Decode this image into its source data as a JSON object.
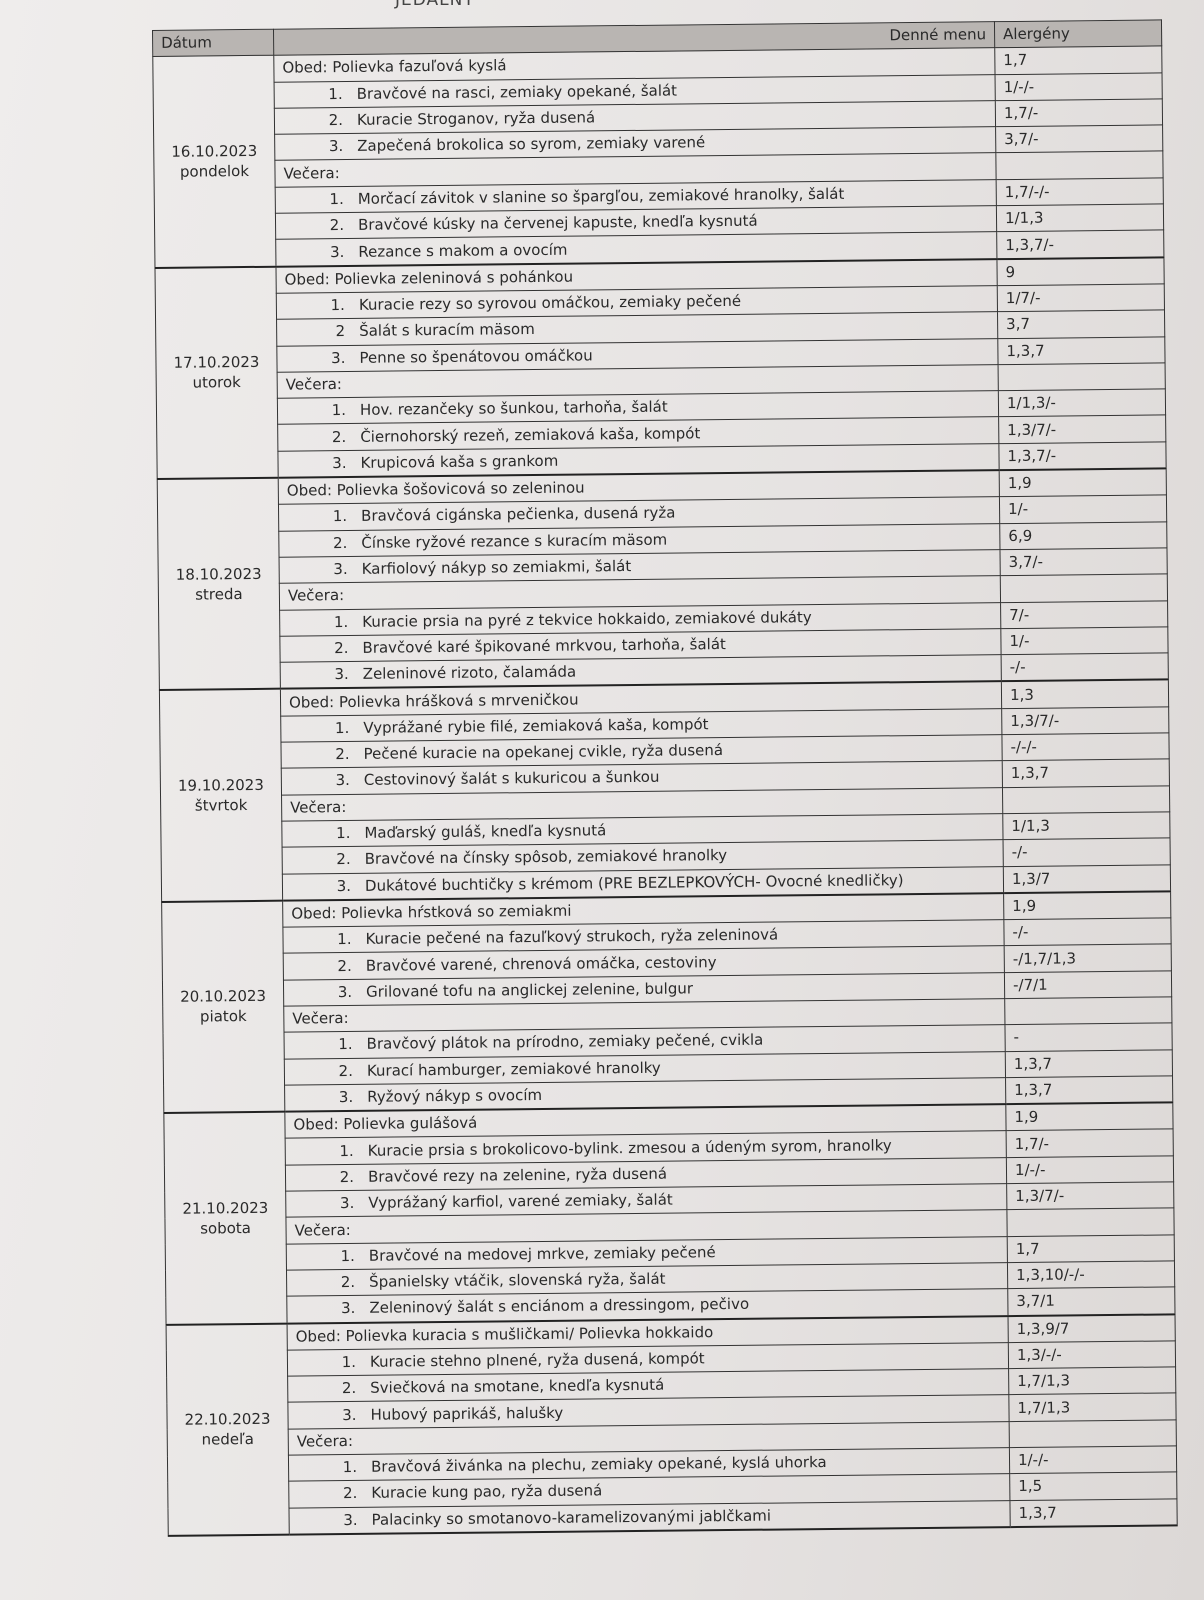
{
  "document": {
    "title_fragment": "JEDÁLNY",
    "headers": {
      "date": "Dátum",
      "menu": "Denné menu",
      "allergens": "Alergény"
    },
    "days": [
      {
        "date": "16.10.2023",
        "weekday": "pondelok",
        "lunch": {
          "label": "Obed: Polievka fazuľová kyslá",
          "allergens": "1,7",
          "items": [
            {
              "n": "1.",
              "name": "Bravčové na rasci, zemiaky opekané, šalát",
              "allergens": "1/-/-"
            },
            {
              "n": "2.",
              "name": "Kuracie Stroganov, ryža dusená",
              "allergens": "1,7/-"
            },
            {
              "n": "3.",
              "name": "Zapečená brokolica so syrom, zemiaky varené",
              "allergens": "3,7/-"
            }
          ]
        },
        "dinner": {
          "label": "Večera:",
          "items": [
            {
              "n": "1.",
              "name": "Morčací závitok v slanine so špargľou, zemiakové hranolky, šalát",
              "allergens": "1,7/-/-"
            },
            {
              "n": "2.",
              "name": "Bravčové kúsky na červenej kapuste, knedľa kysnutá",
              "allergens": "1/1,3"
            },
            {
              "n": "3.",
              "name": "Rezance s makom a ovocím",
              "allergens": "1,3,7/-"
            }
          ]
        }
      },
      {
        "date": "17.10.2023",
        "weekday": "utorok",
        "lunch": {
          "label": "Obed: Polievka zeleninová s pohánkou",
          "allergens": "9",
          "items": [
            {
              "n": "1.",
              "name": "Kuracie rezy so syrovou omáčkou, zemiaky pečené",
              "allergens": "1/7/-"
            },
            {
              "n": "2",
              "name": "Šalát s kuracím mäsom",
              "allergens": "3,7"
            },
            {
              "n": "3.",
              "name": "Penne so špenátovou omáčkou",
              "allergens": "1,3,7"
            }
          ]
        },
        "dinner": {
          "label": "Večera:",
          "items": [
            {
              "n": "1.",
              "name": "Hov. rezančeky so šunkou, tarhoňa, šalát",
              "allergens": "1/1,3/-"
            },
            {
              "n": "2.",
              "name": "Čiernohorský rezeň, zemiaková kaša, kompót",
              "allergens": "1,3/7/-"
            },
            {
              "n": "3.",
              "name": "Krupicová kaša s grankom",
              "allergens": "1,3,7/-"
            }
          ]
        }
      },
      {
        "date": "18.10.2023",
        "weekday": "streda",
        "lunch": {
          "label": "Obed: Polievka šošovicová so zeleninou",
          "allergens": "1,9",
          "items": [
            {
              "n": "1.",
              "name": "Bravčová cigánska pečienka, dusená ryža",
              "allergens": "1/-"
            },
            {
              "n": "2.",
              "name": "Čínske ryžové rezance s kuracím mäsom",
              "allergens": "6,9"
            },
            {
              "n": "3.",
              "name": "Karfiolový nákyp so zemiakmi, šalát",
              "allergens": "3,7/-"
            }
          ]
        },
        "dinner": {
          "label": "Večera:",
          "items": [
            {
              "n": "1.",
              "name": "Kuracie prsia na pyré z tekvice hokkaido, zemiakové dukáty",
              "allergens": "7/-"
            },
            {
              "n": "2.",
              "name": "Bravčové karé špikované mrkvou, tarhoňa, šalát",
              "allergens": "1/-"
            },
            {
              "n": "3.",
              "name": "Zeleninové rizoto, čalamáda",
              "allergens": "-/-"
            }
          ]
        }
      },
      {
        "date": "19.10.2023",
        "weekday": "štvrtok",
        "lunch": {
          "label": "Obed: Polievka hrášková s mrveničkou",
          "allergens": "1,3",
          "items": [
            {
              "n": "1.",
              "name": "Vyprážané rybie filé, zemiaková kaša, kompót",
              "allergens": "1,3/7/-"
            },
            {
              "n": "2.",
              "name": "Pečené kuracie na opekanej cvikle, ryža dusená",
              "allergens": "-/-/-"
            },
            {
              "n": "3.",
              "name": "Cestovinový šalát s kukuricou a šunkou",
              "allergens": "1,3,7"
            }
          ]
        },
        "dinner": {
          "label": "Večera:",
          "items": [
            {
              "n": "1.",
              "name": "Maďarský guláš, knedľa kysnutá",
              "allergens": "1/1,3"
            },
            {
              "n": "2.",
              "name": "Bravčové na čínsky spôsob, zemiakové hranolky",
              "allergens": "-/-"
            },
            {
              "n": "3.",
              "name": "Dukátové buchtičky s krémom (PRE BEZLEPKOVÝCH- Ovocné knedličky)",
              "allergens": "1,3/7"
            }
          ]
        }
      },
      {
        "date": "20.10.2023",
        "weekday": "piatok",
        "lunch": {
          "label": "Obed: Polievka hŕstková so zemiakmi",
          "allergens": "1,9",
          "items": [
            {
              "n": "1.",
              "name": "Kuracie pečené na fazuľkový strukoch, ryža zeleninová",
              "allergens": "-/-"
            },
            {
              "n": "2.",
              "name": "Bravčové varené, chrenová omáčka, cestoviny",
              "allergens": "-/1,7/1,3"
            },
            {
              "n": "3.",
              "name": "Grilované tofu na anglickej zelenine, bulgur",
              "allergens": "-/7/1"
            }
          ]
        },
        "dinner": {
          "label": "Večera:",
          "items": [
            {
              "n": "1.",
              "name": "Bravčový plátok na prírodno, zemiaky pečené, cvikla",
              "allergens": "-"
            },
            {
              "n": "2.",
              "name": "Kurací hamburger, zemiakové hranolky",
              "allergens": "1,3,7"
            },
            {
              "n": "3.",
              "name": "Ryžový nákyp s ovocím",
              "allergens": "1,3,7"
            }
          ]
        }
      },
      {
        "date": "21.10.2023",
        "weekday": "sobota",
        "lunch": {
          "label": "Obed: Polievka gulášová",
          "allergens": "1,9",
          "items": [
            {
              "n": "1.",
              "name": "Kuracie prsia s brokolicovo-bylink. zmesou a údeným syrom, hranolky",
              "allergens": "1,7/-"
            },
            {
              "n": "2.",
              "name": "Bravčové rezy na zelenine, ryža dusená",
              "allergens": "1/-/-"
            },
            {
              "n": "3.",
              "name": "Vyprážaný karfiol, varené zemiaky, šalát",
              "allergens": "1,3/7/-"
            }
          ]
        },
        "dinner": {
          "label": "Večera:",
          "items": [
            {
              "n": "1.",
              "name": "Bravčové na medovej mrkve, zemiaky pečené",
              "allergens": "1,7"
            },
            {
              "n": "2.",
              "name": "Španielsky vtáčik, slovenská ryža, šalát",
              "allergens": "1,3,10/-/-"
            },
            {
              "n": "3.",
              "name": "Zeleninový šalát s enciánom a dressingom, pečivo",
              "allergens": "3,7/1"
            }
          ]
        }
      },
      {
        "date": "22.10.2023",
        "weekday": "nedeľa",
        "lunch": {
          "label": "Obed: Polievka kuracia s mušličkami/ Polievka hokkaido",
          "allergens": "1,3,9/7",
          "items": [
            {
              "n": "1.",
              "name": "Kuracie stehno plnené, ryža dusená, kompót",
              "allergens": "1,3/-/-"
            },
            {
              "n": "2.",
              "name": "Sviečková na smotane, knedľa kysnutá",
              "allergens": "1,7/1,3"
            },
            {
              "n": "3.",
              "name": "Hubový paprikáš, halušky",
              "allergens": "1,7/1,3"
            }
          ]
        },
        "dinner": {
          "label": "Večera:",
          "items": [
            {
              "n": "1.",
              "name": "Bravčová živánka na plechu, zemiaky opekané, kyslá uhorka",
              "allergens": "1/-/-"
            },
            {
              "n": "2.",
              "name": "Kuracie kung pao, ryža dusená",
              "allergens": "1,5"
            },
            {
              "n": "3.",
              "name": "Palacinky so smotanovo-karamelizovanými jablčkami",
              "allergens": "1,3,7"
            }
          ]
        }
      }
    ]
  }
}
